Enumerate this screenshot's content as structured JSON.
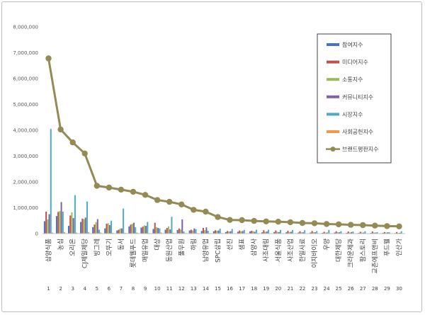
{
  "chart_data": {
    "type": "bar",
    "y_ticks": [
      "0",
      "1,000,000",
      "2,000,000",
      "3,000,000",
      "4,000,000",
      "5,000,000",
      "6,000,000",
      "7,000,000",
      "8,000,000"
    ],
    "ylim": [
      0,
      8000000
    ],
    "grid": false,
    "legend_position": "right",
    "categories": [
      "삼양식품",
      "농심",
      "오리온",
      "CJ제일제당",
      "빙그레",
      "오뚜기",
      "동서",
      "롯데웰푸드",
      "매일유업",
      "대상",
      "동원산업",
      "풀무원",
      "하림",
      "남양유업",
      "SPC삼립",
      "선진",
      "샘표",
      "삼양사",
      "사조대림",
      "서울식품",
      "사조산업",
      "한일사료",
      "이지바이오",
      "우양",
      "대한제당",
      "크라운제과",
      "팜스토리",
      "교촌에프앤비",
      "푸드웰",
      "인산가"
    ],
    "index_labels": [
      "1",
      "2",
      "3",
      "4",
      "5",
      "6",
      "7",
      "8",
      "9",
      "10",
      "11",
      "12",
      "13",
      "14",
      "15",
      "16",
      "17",
      "18",
      "19",
      "20",
      "21",
      "22",
      "23",
      "24",
      "25",
      "26",
      "27",
      "28",
      "29",
      "30"
    ],
    "series": [
      {
        "name": "참여지수",
        "color": "#4472c4",
        "type": "bar",
        "values": [
          480000,
          680000,
          300000,
          450000,
          250000,
          200000,
          120000,
          280000,
          230000,
          180000,
          150000,
          140000,
          120000,
          100000,
          90000,
          60000,
          70000,
          80000,
          50000,
          60000,
          50000,
          40000,
          40000,
          30000,
          40000,
          30000,
          30000,
          30000,
          30000,
          20000
        ]
      },
      {
        "name": "미디어지수",
        "color": "#c0504d",
        "type": "bar",
        "values": [
          850000,
          840000,
          700000,
          580000,
          350000,
          380000,
          150000,
          350000,
          270000,
          420000,
          220000,
          200000,
          150000,
          220000,
          130000,
          100000,
          120000,
          110000,
          130000,
          120000,
          110000,
          90000,
          100000,
          70000,
          90000,
          80000,
          70000,
          80000,
          60000,
          60000
        ]
      },
      {
        "name": "소통지수",
        "color": "#9bbb59",
        "type": "bar",
        "values": [
          550000,
          870000,
          820000,
          560000,
          450000,
          400000,
          200000,
          380000,
          320000,
          250000,
          280000,
          160000,
          120000,
          130000,
          110000,
          80000,
          90000,
          90000,
          70000,
          70000,
          60000,
          50000,
          60000,
          40000,
          50000,
          40000,
          40000,
          40000,
          40000,
          30000
        ]
      },
      {
        "name": "커뮤니티지수",
        "color": "#8064a2",
        "type": "bar",
        "values": [
          750000,
          1220000,
          600000,
          620000,
          560000,
          330000,
          200000,
          420000,
          300000,
          220000,
          160000,
          550000,
          200000,
          240000,
          120000,
          90000,
          100000,
          70000,
          80000,
          60000,
          70000,
          50000,
          50000,
          40000,
          50000,
          60000,
          40000,
          40000,
          50000,
          30000
        ]
      },
      {
        "name": "시장지수",
        "color": "#4bacc6",
        "type": "bar",
        "values": [
          4050000,
          850000,
          1490000,
          1240000,
          150000,
          500000,
          970000,
          250000,
          450000,
          200000,
          650000,
          80000,
          170000,
          110000,
          190000,
          180000,
          140000,
          150000,
          150000,
          140000,
          140000,
          130000,
          100000,
          140000,
          90000,
          80000,
          90000,
          60000,
          50000,
          90000
        ]
      },
      {
        "name": "사회공헌지수",
        "color": "#f79646",
        "type": "bar",
        "values": [
          40000,
          60000,
          40000,
          60000,
          40000,
          30000,
          30000,
          40000,
          20000,
          40000,
          30000,
          20000,
          20000,
          20000,
          20000,
          10000,
          10000,
          20000,
          10000,
          10000,
          10000,
          10000,
          10000,
          10000,
          10000,
          10000,
          10000,
          10000,
          10000,
          10000
        ]
      },
      {
        "name": "브랜드평판지수",
        "color": "#948a54",
        "type": "line",
        "values": [
          6780000,
          4030000,
          3530000,
          3100000,
          1850000,
          1780000,
          1700000,
          1620000,
          1500000,
          1300000,
          1230000,
          1130000,
          920000,
          850000,
          640000,
          530000,
          520000,
          490000,
          470000,
          460000,
          440000,
          410000,
          400000,
          370000,
          360000,
          340000,
          330000,
          310000,
          290000,
          280000
        ]
      }
    ]
  }
}
